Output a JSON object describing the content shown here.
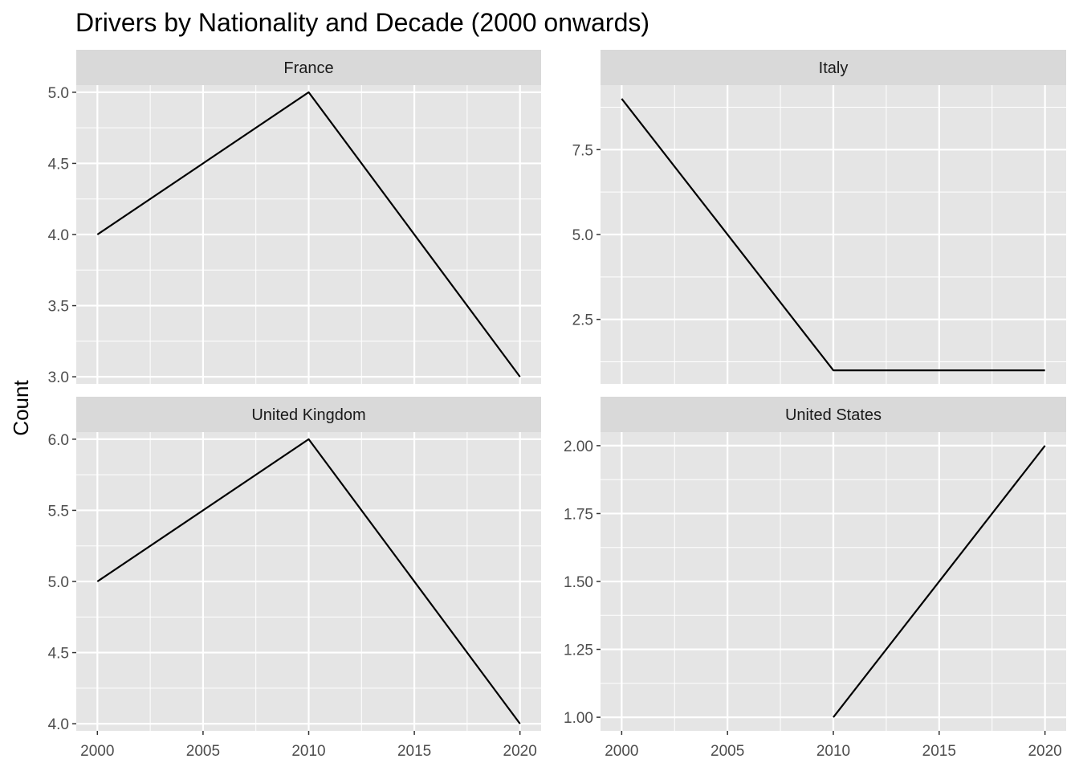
{
  "chart_data": {
    "type": "line",
    "title": "Drivers by Nationality and Decade (2000 onwards)",
    "xlabel": "",
    "ylabel": "Count",
    "grid": true,
    "facets": [
      {
        "panel": "France",
        "x": [
          2000,
          2010,
          2020
        ],
        "y": [
          4,
          5,
          3
        ],
        "xlim": [
          1999,
          2021
        ],
        "ylim": [
          2.95,
          5.05
        ],
        "x_ticks": [
          2000,
          2005,
          2010,
          2015,
          2020
        ],
        "y_ticks": [
          3.0,
          3.5,
          4.0,
          4.5,
          5.0
        ],
        "y_tick_labels": [
          "3.0",
          "3.5",
          "4.0",
          "4.5",
          "5.0"
        ]
      },
      {
        "panel": "Italy",
        "x": [
          2000,
          2010,
          2020
        ],
        "y": [
          9,
          1,
          1
        ],
        "xlim": [
          1999,
          2021
        ],
        "ylim": [
          0.6,
          9.4
        ],
        "x_ticks": [
          2000,
          2005,
          2010,
          2015,
          2020
        ],
        "y_ticks": [
          2.5,
          5.0,
          7.5
        ],
        "y_tick_labels": [
          "2.5",
          "5.0",
          "7.5"
        ]
      },
      {
        "panel": "United Kingdom",
        "x": [
          2000,
          2010,
          2020
        ],
        "y": [
          5,
          6,
          4
        ],
        "xlim": [
          1999,
          2021
        ],
        "ylim": [
          3.95,
          6.05
        ],
        "x_ticks": [
          2000,
          2005,
          2010,
          2015,
          2020
        ],
        "y_ticks": [
          4.0,
          4.5,
          5.0,
          5.5,
          6.0
        ],
        "y_tick_labels": [
          "4.0",
          "4.5",
          "5.0",
          "5.5",
          "6.0"
        ]
      },
      {
        "panel": "United States",
        "x": [
          2010,
          2020
        ],
        "y": [
          1,
          2
        ],
        "xlim": [
          1999,
          2021
        ],
        "ylim": [
          0.95,
          2.05
        ],
        "x_ticks": [
          2000,
          2005,
          2010,
          2015,
          2020
        ],
        "y_ticks": [
          1.0,
          1.25,
          1.5,
          1.75,
          2.0
        ],
        "y_tick_labels": [
          "1.00",
          "1.25",
          "1.50",
          "1.75",
          "2.00"
        ]
      }
    ],
    "x_tick_labels": [
      "2000",
      "2005",
      "2010",
      "2015",
      "2020"
    ],
    "colors": {
      "panel_background": "#e5e5e5",
      "grid": "#ffffff",
      "strip_background": "#d9d9d9",
      "line": "#000000"
    }
  }
}
